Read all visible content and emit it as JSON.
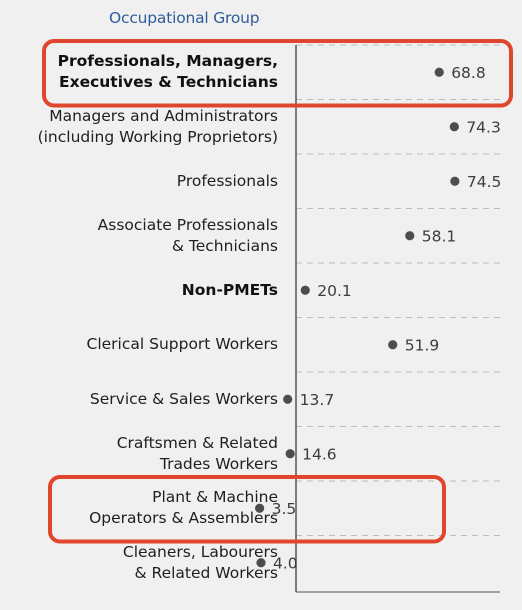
{
  "header": {
    "column_title": "Occupational Group"
  },
  "colors": {
    "header": "#2e5d9a",
    "dot": "#4d4d4d",
    "highlight": "#e0462e",
    "axis": "#555555",
    "grid": "#bdbdbd"
  },
  "chart_data": {
    "type": "scatter",
    "orientation": "horizontal",
    "xlim": [
      0,
      80
    ],
    "grid": "dashed horizontal separators",
    "categories": [
      {
        "label": "Professionals, Managers, Executives & Technicians",
        "lines": [
          "Professionals, Managers,",
          "Executives & Technicians"
        ],
        "value": 68.8,
        "value_label": "68.8",
        "bold": true,
        "highlighted": true
      },
      {
        "label": "Managers and Administrators (including Working Proprietors)",
        "lines": [
          "Managers and Administrators",
          "(including Working Proprietors)"
        ],
        "value": 74.3,
        "value_label": "74.3",
        "bold": false,
        "highlighted": false
      },
      {
        "label": "Professionals",
        "lines": [
          "Professionals"
        ],
        "value": 74.5,
        "value_label": "74.5",
        "bold": false,
        "highlighted": false
      },
      {
        "label": "Associate Professionals & Technicians",
        "lines": [
          "Associate Professionals",
          "& Technicians"
        ],
        "value": 58.1,
        "value_label": "58.1",
        "bold": false,
        "highlighted": false
      },
      {
        "label": "Non-PMETs",
        "lines": [
          "Non-PMETs"
        ],
        "value": 20.1,
        "value_label": "20.1",
        "bold": true,
        "highlighted": false
      },
      {
        "label": "Clerical Support Workers",
        "lines": [
          "Clerical Support Workers"
        ],
        "value": 51.9,
        "value_label": "51.9",
        "bold": false,
        "highlighted": false
      },
      {
        "label": "Service & Sales Workers",
        "lines": [
          "Service & Sales Workers"
        ],
        "value": 13.7,
        "value_label": "13.7",
        "bold": false,
        "highlighted": false
      },
      {
        "label": "Craftsmen & Related Trades Workers",
        "lines": [
          "Craftsmen & Related",
          "Trades Workers"
        ],
        "value": 14.6,
        "value_label": "14.6",
        "bold": false,
        "highlighted": false
      },
      {
        "label": "Plant & Machine Operators & Assemblers",
        "lines": [
          "Plant & Machine",
          "Operators & Assemblers"
        ],
        "value": 3.5,
        "value_label": "3.5",
        "bold": false,
        "highlighted": true
      },
      {
        "label": "Cleaners, Labourers & Related Workers",
        "lines": [
          "Cleaners, Labourers",
          "& Related Workers"
        ],
        "value": 4.0,
        "value_label": "4.0",
        "bold": false,
        "highlighted": false
      }
    ]
  }
}
